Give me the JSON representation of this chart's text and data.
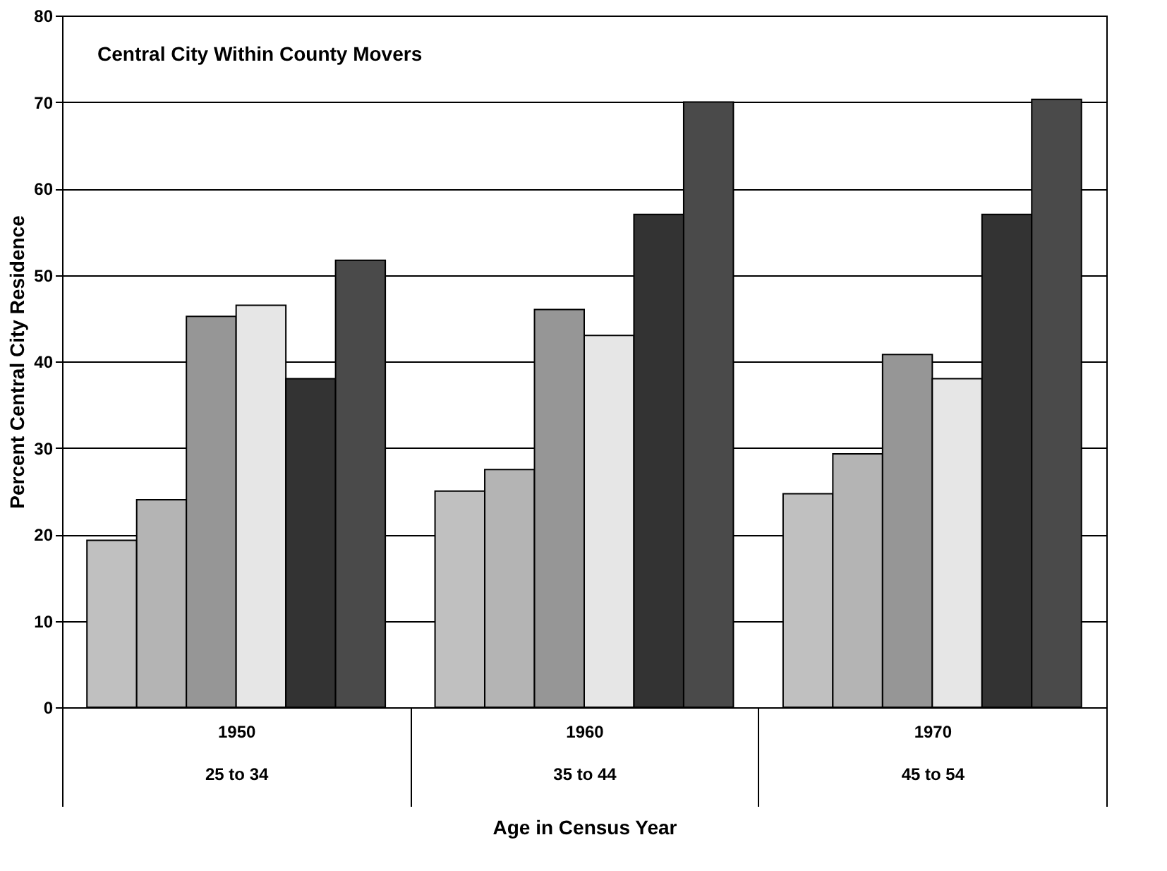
{
  "chart_data": {
    "type": "bar",
    "title": "Central City Within County Movers",
    "xlabel": "Age in Census Year",
    "ylabel": "Percent Central City Residence",
    "categories": [
      "1950\n25 to 34",
      "1960\n35 to 44",
      "1970\n45 to 54"
    ],
    "series": [
      {
        "color": "#c0c0c0",
        "values": [
          19.3,
          25,
          24.7
        ]
      },
      {
        "color": "#b4b4b4",
        "values": [
          24,
          27.5,
          29.3
        ]
      },
      {
        "color": "#969696",
        "values": [
          45.2,
          46,
          40.8
        ]
      },
      {
        "color": "#e6e6e6",
        "values": [
          46.5,
          43,
          38
        ]
      },
      {
        "color": "#333333",
        "values": [
          38,
          57,
          57
        ]
      },
      {
        "color": "#4a4a4a",
        "values": [
          51.7,
          70,
          70.3
        ]
      }
    ],
    "ylim": [
      0,
      80
    ],
    "yticks": [
      0,
      10,
      20,
      30,
      40,
      50,
      60,
      70,
      80
    ],
    "grid": "y",
    "legend": false
  }
}
